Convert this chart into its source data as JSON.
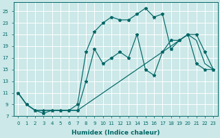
{
  "xlabel": "Humidex (Indice chaleur)",
  "bg_color": "#cce8e8",
  "grid_color": "#ffffff",
  "line_color": "#006666",
  "xlim": [
    -0.5,
    23.5
  ],
  "ylim": [
    7,
    26.5
  ],
  "xticks": [
    0,
    1,
    2,
    3,
    4,
    5,
    6,
    7,
    8,
    9,
    10,
    11,
    12,
    13,
    14,
    15,
    16,
    17,
    18,
    19,
    20,
    21,
    22,
    23
  ],
  "yticks": [
    7,
    9,
    11,
    13,
    15,
    17,
    19,
    21,
    23,
    25
  ],
  "line_top_x": [
    0,
    1,
    2,
    3,
    4,
    5,
    6,
    7,
    8,
    9,
    10,
    11,
    12,
    13,
    14,
    15,
    16,
    17,
    18,
    19,
    20,
    21,
    22,
    23
  ],
  "line_top_y": [
    11,
    9,
    8,
    7.5,
    8,
    8,
    8,
    9,
    18,
    21.5,
    23,
    24,
    23.5,
    23.5,
    24.5,
    25.5,
    24,
    24.5,
    18.5,
    20,
    21,
    21,
    18,
    15
  ],
  "line_mid_x": [
    0,
    1,
    2,
    3,
    4,
    5,
    6,
    7,
    8,
    9,
    10,
    11,
    12,
    13,
    14,
    15,
    16,
    17,
    18,
    19,
    20,
    21,
    22,
    23
  ],
  "line_mid_y": [
    11,
    9,
    8,
    8,
    8,
    8,
    8,
    8,
    13,
    18.5,
    16,
    17,
    18,
    17,
    21,
    15,
    14,
    18,
    20,
    20,
    21,
    16,
    15,
    15
  ],
  "line_bot_x": [
    0,
    1,
    2,
    3,
    4,
    5,
    6,
    7,
    8,
    9,
    10,
    11,
    12,
    13,
    14,
    15,
    16,
    17,
    18,
    19,
    20,
    21,
    22,
    23
  ],
  "line_bot_y": [
    11,
    9,
    8,
    8,
    8,
    8,
    8,
    8,
    9,
    10,
    11,
    12,
    13,
    14,
    15,
    16,
    17,
    18,
    19,
    20,
    21,
    20,
    16,
    15
  ]
}
